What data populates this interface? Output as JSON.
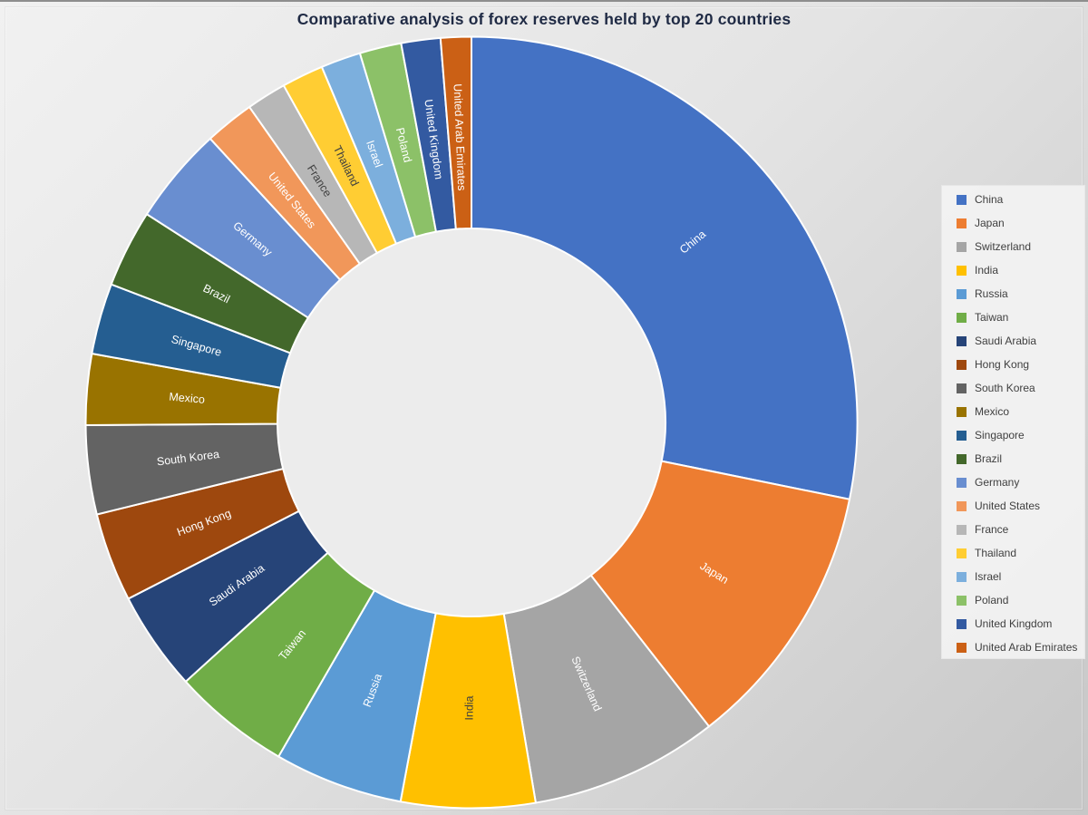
{
  "page": {
    "background_top_left": "#F1F1F1",
    "background_bottom_right": "#C7C7C7",
    "frame_edge_color": "#8E8E8E"
  },
  "chart_data": {
    "type": "pie",
    "subtype": "donut",
    "title": "Comparative analysis of forex reserves held by top 20 countries",
    "title_color": "#1F2A44",
    "legend_position": "right",
    "direction": "clockwise",
    "start_angle_deg": 0,
    "hole_ratio": 0.5,
    "hole_fill": "#ECECEC",
    "slice_border_color": "#FFFFFF",
    "categories": [
      "China",
      "Japan",
      "Switzerland",
      "India",
      "Russia",
      "Taiwan",
      "Saudi Arabia",
      "Hong Kong",
      "South Korea",
      "Mexico",
      "Singapore",
      "Brazil",
      "Germany",
      "United States",
      "France",
      "Thailand",
      "Israel",
      "Poland",
      "United Kingdom",
      "United Arab Emirates"
    ],
    "values_percent": [
      28.19,
      11.25,
      7.89,
      5.61,
      5.39,
      4.94,
      4.17,
      3.72,
      3.72,
      2.97,
      2.97,
      3.25,
      4.08,
      2.08,
      1.67,
      1.75,
      1.67,
      1.75,
      1.64,
      1.28
    ],
    "colors": [
      "#4472C4",
      "#ED7D31",
      "#A5A5A5",
      "#FFC000",
      "#5B9BD5",
      "#70AD47",
      "#264478",
      "#9E480E",
      "#636363",
      "#997300",
      "#255E91",
      "#43682B",
      "#698ED0",
      "#F1975A",
      "#B7B7B7",
      "#FFCD33",
      "#7CAFDD",
      "#8CC168",
      "#335AA1",
      "#CB6015"
    ],
    "slice_label_colors": [
      "#FFFFFF",
      "#FFFFFF",
      "#FFFFFF",
      "#404040",
      "#FFFFFF",
      "#FFFFFF",
      "#FFFFFF",
      "#FFFFFF",
      "#FFFFFF",
      "#FFFFFF",
      "#FFFFFF",
      "#FFFFFF",
      "#FFFFFF",
      "#FFFFFF",
      "#404040",
      "#404040",
      "#FFFFFF",
      "#FFFFFF",
      "#FFFFFF",
      "#FFFFFF"
    ],
    "legend_text_color": "#3F3F3F"
  }
}
